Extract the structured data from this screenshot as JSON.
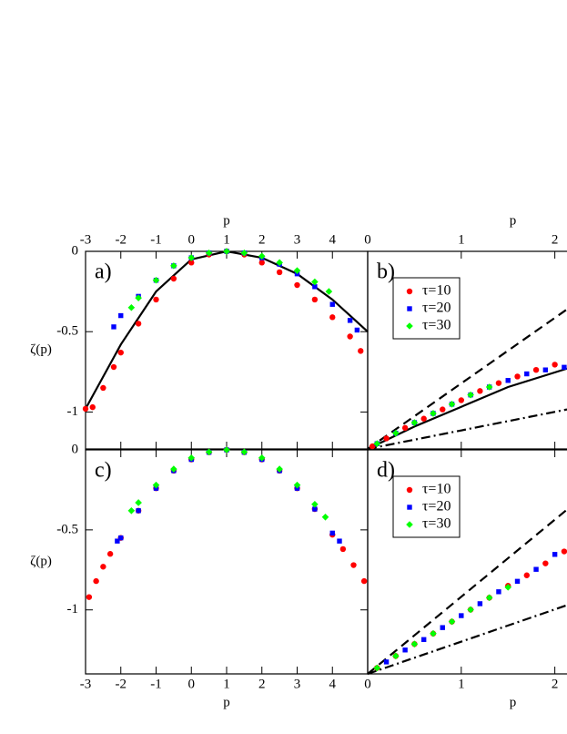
{
  "chart_data": [
    {
      "type": "scatter",
      "label": "a)",
      "xlabel": "p",
      "ylabel": "ζ(p)",
      "xaxis_position": "top",
      "xlim": [
        -3,
        5
      ],
      "xticks": [
        -3,
        -2,
        -1,
        0,
        1,
        2,
        3,
        4
      ],
      "ylim": [
        -1.23,
        0
      ],
      "yticks": [
        0,
        -0.5,
        -1
      ],
      "series": [
        {
          "color": "#ff0000",
          "marker": "circle",
          "x": [
            -3,
            -2.8,
            -2.5,
            -2.2,
            -2,
            -1.5,
            -1,
            -0.5,
            0,
            0.5,
            1,
            1.5,
            2,
            2.5,
            3,
            3.5,
            4,
            4.5,
            4.8
          ],
          "values": [
            -0.98,
            -0.97,
            -0.85,
            -0.72,
            -0.63,
            -0.45,
            -0.3,
            -0.17,
            -0.07,
            -0.02,
            0,
            -0.02,
            -0.07,
            -0.13,
            -0.21,
            -0.3,
            -0.41,
            -0.53,
            -0.62
          ]
        },
        {
          "color": "#0000ff",
          "marker": "square",
          "x": [
            -2.2,
            -2,
            -1.5,
            -1,
            -0.5,
            0,
            0.5,
            1,
            1.5,
            2,
            2.5,
            3,
            3.5,
            4,
            4.5,
            4.7
          ],
          "values": [
            -0.47,
            -0.4,
            -0.28,
            -0.18,
            -0.09,
            -0.04,
            -0.01,
            0,
            -0.01,
            -0.04,
            -0.08,
            -0.14,
            -0.22,
            -0.33,
            -0.43,
            -0.49
          ]
        },
        {
          "color": "#00ff00",
          "marker": "diamond",
          "x": [
            -1.7,
            -1.5,
            -1,
            -0.5,
            0,
            0.5,
            1,
            1.5,
            2,
            2.5,
            3,
            3.5,
            3.9
          ],
          "values": [
            -0.35,
            -0.29,
            -0.18,
            -0.09,
            -0.04,
            -0.01,
            0,
            -0.01,
            -0.03,
            -0.07,
            -0.12,
            -0.19,
            -0.25
          ]
        }
      ],
      "lines": [
        {
          "style": "solid",
          "x": [
            -3,
            -2,
            -1,
            0,
            1,
            2,
            3,
            4,
            5
          ],
          "values": [
            -0.98,
            -0.58,
            -0.25,
            -0.05,
            0,
            -0.04,
            -0.14,
            -0.3,
            -0.5
          ]
        }
      ]
    },
    {
      "type": "scatter",
      "label": "b)",
      "xlabel": "p",
      "xaxis_position": "top",
      "xlim": [
        0,
        2.13
      ],
      "xticks": [
        0,
        1,
        2
      ],
      "ylim": [
        0,
        1.5
      ],
      "legend": "upper left",
      "series": [
        {
          "name": "τ=10",
          "color": "#ff0000",
          "marker": "circle",
          "x": [
            0.05,
            0.2,
            0.4,
            0.6,
            0.8,
            1,
            1.2,
            1.4,
            1.6,
            1.8,
            2
          ],
          "values": [
            0.02,
            0.08,
            0.16,
            0.23,
            0.3,
            0.37,
            0.44,
            0.5,
            0.55,
            0.6,
            0.64
          ]
        },
        {
          "name": "τ=20",
          "color": "#0000ff",
          "marker": "square",
          "x": [
            0.1,
            0.3,
            0.5,
            0.7,
            0.9,
            1.1,
            1.3,
            1.5,
            1.7,
            1.9,
            2.1
          ],
          "values": [
            0.04,
            0.12,
            0.2,
            0.27,
            0.34,
            0.41,
            0.47,
            0.52,
            0.57,
            0.6,
            0.62
          ]
        },
        {
          "name": "τ=30",
          "color": "#00ff00",
          "marker": "diamond",
          "x": [
            0.1,
            0.3,
            0.5,
            0.7,
            0.9,
            1.1,
            1.3
          ],
          "values": [
            0.04,
            0.12,
            0.2,
            0.27,
            0.34,
            0.41,
            0.47
          ]
        }
      ],
      "lines": [
        {
          "style": "dashed",
          "x": [
            0,
            2.13
          ],
          "values": [
            0,
            1.06
          ]
        },
        {
          "style": "solid",
          "x": [
            0,
            0.5,
            1,
            1.5,
            2.13
          ],
          "values": [
            0,
            0.17,
            0.32,
            0.47,
            0.61
          ]
        },
        {
          "style": "dashdot",
          "x": [
            0,
            2.13
          ],
          "values": [
            0,
            0.3
          ]
        }
      ]
    },
    {
      "type": "scatter",
      "label": "c)",
      "xlabel": "p",
      "ylabel": "ζ(p)",
      "xaxis_position": "bottom",
      "xlim": [
        -3,
        5
      ],
      "xticks": [
        -3,
        -2,
        -1,
        0,
        1,
        2,
        3,
        4
      ],
      "ylim": [
        -1.4,
        0
      ],
      "yticks": [
        0,
        -0.5,
        -1
      ],
      "series": [
        {
          "color": "#ff0000",
          "marker": "circle",
          "x": [
            -2.9,
            -2.7,
            -2.5,
            -2.3,
            -2,
            -1.5,
            -1,
            -0.5,
            0,
            0.5,
            1,
            1.5,
            2,
            2.5,
            3,
            3.5,
            4,
            4.3,
            4.6,
            4.9
          ],
          "values": [
            -0.92,
            -0.82,
            -0.73,
            -0.65,
            -0.55,
            -0.38,
            -0.24,
            -0.13,
            -0.06,
            -0.015,
            0,
            -0.015,
            -0.06,
            -0.13,
            -0.24,
            -0.37,
            -0.53,
            -0.62,
            -0.72,
            -0.82
          ]
        },
        {
          "color": "#0000ff",
          "marker": "square",
          "x": [
            -2.1,
            -2,
            -1.5,
            -1,
            -0.5,
            0,
            0.5,
            1,
            1.5,
            2,
            2.5,
            3,
            3.5,
            4,
            4.2
          ],
          "values": [
            -0.57,
            -0.55,
            -0.38,
            -0.24,
            -0.13,
            -0.06,
            -0.015,
            0,
            -0.015,
            -0.06,
            -0.13,
            -0.24,
            -0.37,
            -0.52,
            -0.57
          ]
        },
        {
          "color": "#00ff00",
          "marker": "diamond",
          "x": [
            -1.7,
            -1.5,
            -1,
            -0.5,
            0,
            0.5,
            1,
            1.5,
            2,
            2.5,
            3,
            3.5,
            3.8
          ],
          "values": [
            -0.38,
            -0.33,
            -0.22,
            -0.12,
            -0.05,
            -0.013,
            0,
            -0.013,
            -0.05,
            -0.12,
            -0.22,
            -0.34,
            -0.42
          ]
        }
      ],
      "lines": []
    },
    {
      "type": "scatter",
      "label": "d)",
      "xlabel": "p",
      "xaxis_position": "bottom",
      "xlim": [
        0,
        2.13
      ],
      "xticks": [
        0,
        1,
        2
      ],
      "ylim": [
        0,
        1.5
      ],
      "legend": "upper left",
      "series": [
        {
          "name": "τ=10",
          "color": "#ff0000",
          "marker": "circle",
          "x": [
            0.1,
            0.3,
            0.5,
            0.7,
            0.9,
            1.1,
            1.3,
            1.5,
            1.7,
            1.9,
            2.1
          ],
          "values": [
            0.04,
            0.12,
            0.2,
            0.27,
            0.35,
            0.43,
            0.51,
            0.59,
            0.66,
            0.74,
            0.82
          ]
        },
        {
          "name": "τ=20",
          "color": "#0000ff",
          "marker": "square",
          "x": [
            0.2,
            0.4,
            0.6,
            0.8,
            1,
            1.2,
            1.4,
            1.6,
            1.8,
            2
          ],
          "values": [
            0.08,
            0.16,
            0.23,
            0.31,
            0.39,
            0.47,
            0.55,
            0.62,
            0.7,
            0.8
          ]
        },
        {
          "name": "τ=30",
          "color": "#00ff00",
          "marker": "diamond",
          "x": [
            0.1,
            0.3,
            0.5,
            0.7,
            0.9,
            1.1,
            1.3,
            1.5
          ],
          "values": [
            0.04,
            0.12,
            0.2,
            0.27,
            0.35,
            0.43,
            0.51,
            0.58
          ]
        }
      ],
      "lines": [
        {
          "style": "dashed",
          "x": [
            0,
            2.13
          ],
          "values": [
            0,
            1.1
          ]
        },
        {
          "style": "dashdot",
          "x": [
            0,
            2.13
          ],
          "values": [
            0,
            0.46
          ]
        }
      ]
    }
  ]
}
